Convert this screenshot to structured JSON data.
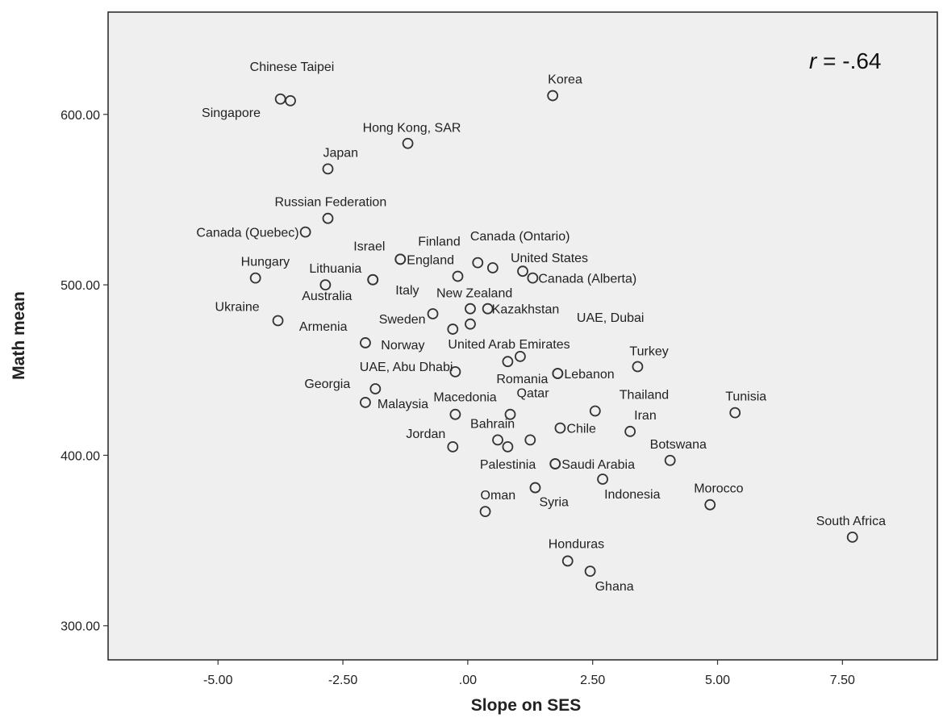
{
  "chart_data": {
    "type": "scatter",
    "xlabel": "Slope on SES",
    "ylabel": "Math mean",
    "xlim": [
      -7.2,
      9.4
    ],
    "ylim": [
      280,
      660
    ],
    "x_ticks": [
      -5,
      -2.5,
      0,
      2.5,
      5,
      7.5
    ],
    "x_tick_labels": [
      "-5.00",
      "-2.50",
      ".00",
      "2.50",
      "5.00",
      "7.50"
    ],
    "y_ticks": [
      300,
      400,
      500,
      600
    ],
    "y_tick_labels": [
      "300.00",
      "400.00",
      "500.00",
      "600.00"
    ],
    "annotation": {
      "r_symbol": "r",
      "r_value": " = -.64"
    },
    "grid": false,
    "legend": "none",
    "points": [
      {
        "label": "Chinese Taipei",
        "x": -3.75,
        "y": 609,
        "anchor": "start",
        "dx": -38,
        "dy": -35
      },
      {
        "label": "Singapore",
        "x": -3.55,
        "y": 608,
        "anchor": "start",
        "dx": -110,
        "dy": 20
      },
      {
        "label": "Korea",
        "x": 1.7,
        "y": 611,
        "anchor": "start",
        "dx": -6,
        "dy": -15
      },
      {
        "label": "Hong Kong, SAR",
        "x": -1.2,
        "y": 583,
        "anchor": "start",
        "dx": -56,
        "dy": -14
      },
      {
        "label": "Japan",
        "x": -2.8,
        "y": 568,
        "anchor": "start",
        "dx": -6,
        "dy": -15
      },
      {
        "label": "Russian Federation",
        "x": -2.8,
        "y": 539,
        "anchor": "start",
        "dx": -66,
        "dy": -15
      },
      {
        "label": "Canada (Quebec)",
        "x": -3.25,
        "y": 531,
        "anchor": "end",
        "dx": -8,
        "dy": 6
      },
      {
        "label": "Israel",
        "x": -1.35,
        "y": 515,
        "anchor": "start",
        "dx": -58,
        "dy": -11
      },
      {
        "label": "England",
        "x": -1.35,
        "y": 515,
        "anchor": "start",
        "dx": 8,
        "dy": 6
      },
      {
        "label": "Finland",
        "x": 0.2,
        "y": 513,
        "anchor": "start",
        "dx": -74,
        "dy": -21
      },
      {
        "label": "Canada (Ontario)",
        "x": 0.5,
        "y": 510,
        "anchor": "start",
        "dx": -28,
        "dy": -34
      },
      {
        "label": "United States",
        "x": 1.1,
        "y": 508,
        "anchor": "start",
        "dx": -15,
        "dy": -11
      },
      {
        "label": "Canada (Alberta)",
        "x": 1.3,
        "y": 504,
        "anchor": "start",
        "dx": 7,
        "dy": 6
      },
      {
        "label": "Hungary",
        "x": -4.25,
        "y": 504,
        "anchor": "start",
        "dx": -18,
        "dy": -15
      },
      {
        "label": "Lithuania",
        "x": -2.85,
        "y": 500,
        "anchor": "start",
        "dx": -20,
        "dy": -15
      },
      {
        "label": "Italy",
        "x": -1.9,
        "y": 503,
        "anchor": "start",
        "dx": 28,
        "dy": 18
      },
      {
        "label": "Australia",
        "x": -1.9,
        "y": 503,
        "anchor": "start",
        "dx": -88,
        "dy": 25
      },
      {
        "label": "",
        "x": -0.2,
        "y": 505,
        "anchor": "start",
        "dx": 0,
        "dy": 0
      },
      {
        "label": "New Zealand",
        "x": 0.05,
        "y": 486,
        "anchor": "start",
        "dx": -42,
        "dy": -14
      },
      {
        "label": "Kazakhstan",
        "x": 0.4,
        "y": 486,
        "anchor": "start",
        "dx": 5,
        "dy": 6
      },
      {
        "label": "Ukraine",
        "x": -3.8,
        "y": 479,
        "anchor": "start",
        "dx": -78,
        "dy": -12
      },
      {
        "label": "Sweden",
        "x": -0.7,
        "y": 483,
        "anchor": "end",
        "dx": -9,
        "dy": 12
      },
      {
        "label": "Armenia",
        "x": -2.05,
        "y": 466,
        "anchor": "start",
        "dx": -82,
        "dy": -15
      },
      {
        "label": "Norway",
        "x": -0.3,
        "y": 474,
        "anchor": "start",
        "dx": -89,
        "dy": 25
      },
      {
        "label": "",
        "x": 0.05,
        "y": 477,
        "anchor": "start",
        "dx": 0,
        "dy": 0
      },
      {
        "label": "UAE, Dubai",
        "x": 1.05,
        "y": 458,
        "anchor": "start",
        "dx": 70,
        "dy": -43
      },
      {
        "label": "United Arab Emirates",
        "x": 0.8,
        "y": 455,
        "anchor": "start",
        "dx": -74,
        "dy": -16
      },
      {
        "label": "Turkey",
        "x": 3.4,
        "y": 452,
        "anchor": "start",
        "dx": -10,
        "dy": -14
      },
      {
        "label": "UAE, Abu Dhabi",
        "x": -0.25,
        "y": 449,
        "anchor": "end",
        "dx": -3,
        "dy": -1
      },
      {
        "label": "Romania",
        "x": 1.8,
        "y": 448,
        "anchor": "end",
        "dx": -12,
        "dy": 12
      },
      {
        "label": "Lebanon",
        "x": 1.8,
        "y": 448,
        "anchor": "start",
        "dx": 8,
        "dy": 6
      },
      {
        "label": "Georgia",
        "x": -1.85,
        "y": 439,
        "anchor": "start",
        "dx": -88,
        "dy": -1
      },
      {
        "label": "Malaysia",
        "x": -2.05,
        "y": 431,
        "anchor": "start",
        "dx": 15,
        "dy": 7
      },
      {
        "label": "Macedonia",
        "x": -0.25,
        "y": 424,
        "anchor": "start",
        "dx": -27,
        "dy": -16
      },
      {
        "label": "Qatar",
        "x": 0.85,
        "y": 424,
        "anchor": "start",
        "dx": 8,
        "dy": -21
      },
      {
        "label": "Thailand",
        "x": 2.55,
        "y": 426,
        "anchor": "start",
        "dx": 30,
        "dy": -15
      },
      {
        "label": "Tunisia",
        "x": 5.35,
        "y": 425,
        "anchor": "start",
        "dx": -12,
        "dy": -15
      },
      {
        "label": "Iran",
        "x": 3.25,
        "y": 414,
        "anchor": "start",
        "dx": 5,
        "dy": -15
      },
      {
        "label": "Chile",
        "x": 1.85,
        "y": 416,
        "anchor": "start",
        "dx": 8,
        "dy": 6
      },
      {
        "label": "Bahrain",
        "x": 0.6,
        "y": 409,
        "anchor": "start",
        "dx": -34,
        "dy": -15
      },
      {
        "label": "Jordan",
        "x": -0.3,
        "y": 405,
        "anchor": "end",
        "dx": -9,
        "dy": -11
      },
      {
        "label": "",
        "x": 0.8,
        "y": 405,
        "anchor": "start",
        "dx": 0,
        "dy": 0
      },
      {
        "label": "",
        "x": 1.25,
        "y": 409,
        "anchor": "start",
        "dx": 0,
        "dy": 0
      },
      {
        "label": "Botswana",
        "x": 4.05,
        "y": 397,
        "anchor": "start",
        "dx": -25,
        "dy": -15
      },
      {
        "label": "Palestinia",
        "x": 1.75,
        "y": 395,
        "anchor": "end",
        "dx": -24,
        "dy": 6
      },
      {
        "label": "Saudi Arabia",
        "x": 1.75,
        "y": 395,
        "anchor": "start",
        "dx": 8,
        "dy": 6
      },
      {
        "label": "Indonesia",
        "x": 2.7,
        "y": 386,
        "anchor": "start",
        "dx": 2,
        "dy": 24
      },
      {
        "label": "Syria",
        "x": 1.35,
        "y": 381,
        "anchor": "start",
        "dx": 5,
        "dy": 23
      },
      {
        "label": "Oman",
        "x": 0.35,
        "y": 367,
        "anchor": "start",
        "dx": -6,
        "dy": -15
      },
      {
        "label": "Morocco",
        "x": 4.85,
        "y": 371,
        "anchor": "start",
        "dx": -20,
        "dy": -15
      },
      {
        "label": "South Africa",
        "x": 7.7,
        "y": 352,
        "anchor": "start",
        "dx": -45,
        "dy": -15
      },
      {
        "label": "Honduras",
        "x": 2.0,
        "y": 338,
        "anchor": "start",
        "dx": -24,
        "dy": -16
      },
      {
        "label": "Ghana",
        "x": 2.45,
        "y": 332,
        "anchor": "start",
        "dx": 6,
        "dy": 24
      }
    ]
  }
}
